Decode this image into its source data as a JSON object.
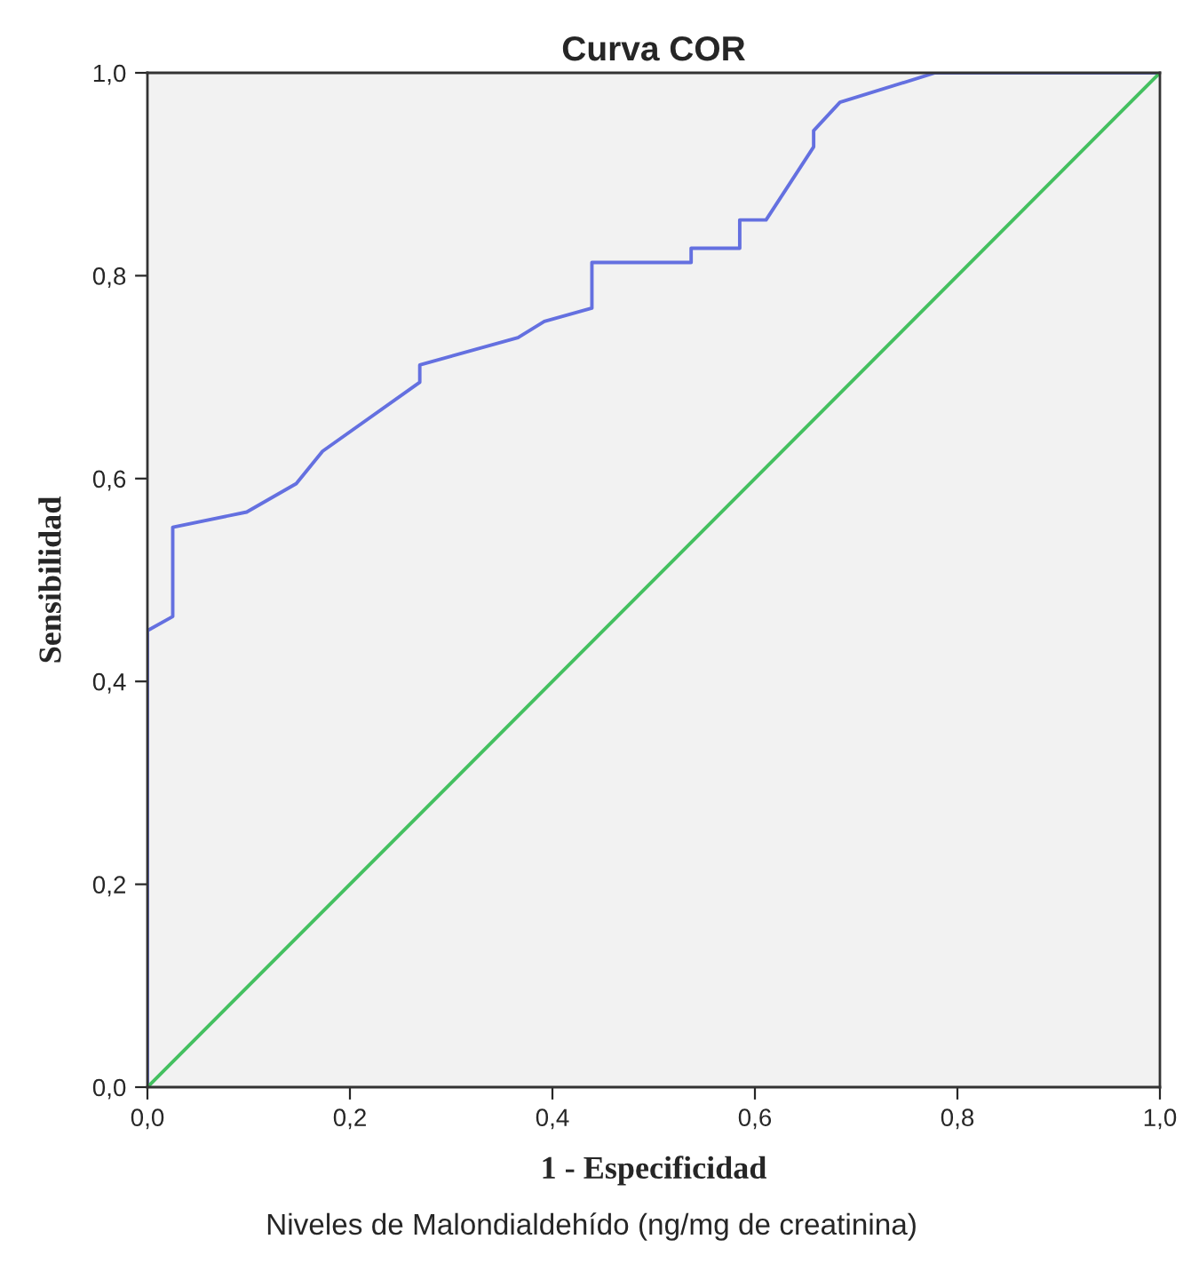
{
  "chart_data": {
    "type": "line",
    "title": "Curva COR",
    "xlabel": "1 - Especificidad",
    "ylabel": "Sensibilidad",
    "xlim": [
      0,
      1
    ],
    "ylim": [
      0,
      1
    ],
    "xticks": [
      {
        "value": 0,
        "label": "0,0"
      },
      {
        "value": 0.2,
        "label": "0,2"
      },
      {
        "value": 0.4,
        "label": "0,4"
      },
      {
        "value": 0.6,
        "label": "0,6"
      },
      {
        "value": 0.8,
        "label": "0,8"
      },
      {
        "value": 1,
        "label": "1,0"
      }
    ],
    "yticks": [
      {
        "value": 0,
        "label": "0,0"
      },
      {
        "value": 0.2,
        "label": "0,2"
      },
      {
        "value": 0.4,
        "label": "0,4"
      },
      {
        "value": 0.6,
        "label": "0,6"
      },
      {
        "value": 0.8,
        "label": "0,8"
      },
      {
        "value": 1,
        "label": "1,0"
      }
    ],
    "grid": false,
    "marker": "none",
    "line_style": "solid",
    "series": [
      {
        "color": "#6470e0",
        "x": [
          0,
          0,
          0.025,
          0.025,
          0.098,
          0.147,
          0.173,
          0.269,
          0.269,
          0.366,
          0.392,
          0.439,
          0.439,
          0.537,
          0.537,
          0.585,
          0.585,
          0.611,
          0.658,
          0.658,
          0.684,
          0.778,
          1
        ],
        "values": [
          0,
          0.45,
          0.464,
          0.552,
          0.567,
          0.595,
          0.627,
          0.695,
          0.712,
          0.739,
          0.755,
          0.768,
          0.813,
          0.813,
          0.827,
          0.827,
          0.855,
          0.855,
          0.927,
          0.943,
          0.971,
          1,
          1
        ]
      },
      {
        "color": "#44c060",
        "x": [
          0,
          1
        ],
        "values": [
          0,
          1
        ]
      }
    ],
    "annotations": [
      "Niveles de Malondialdehído (ng/mg de creatinina)"
    ]
  }
}
